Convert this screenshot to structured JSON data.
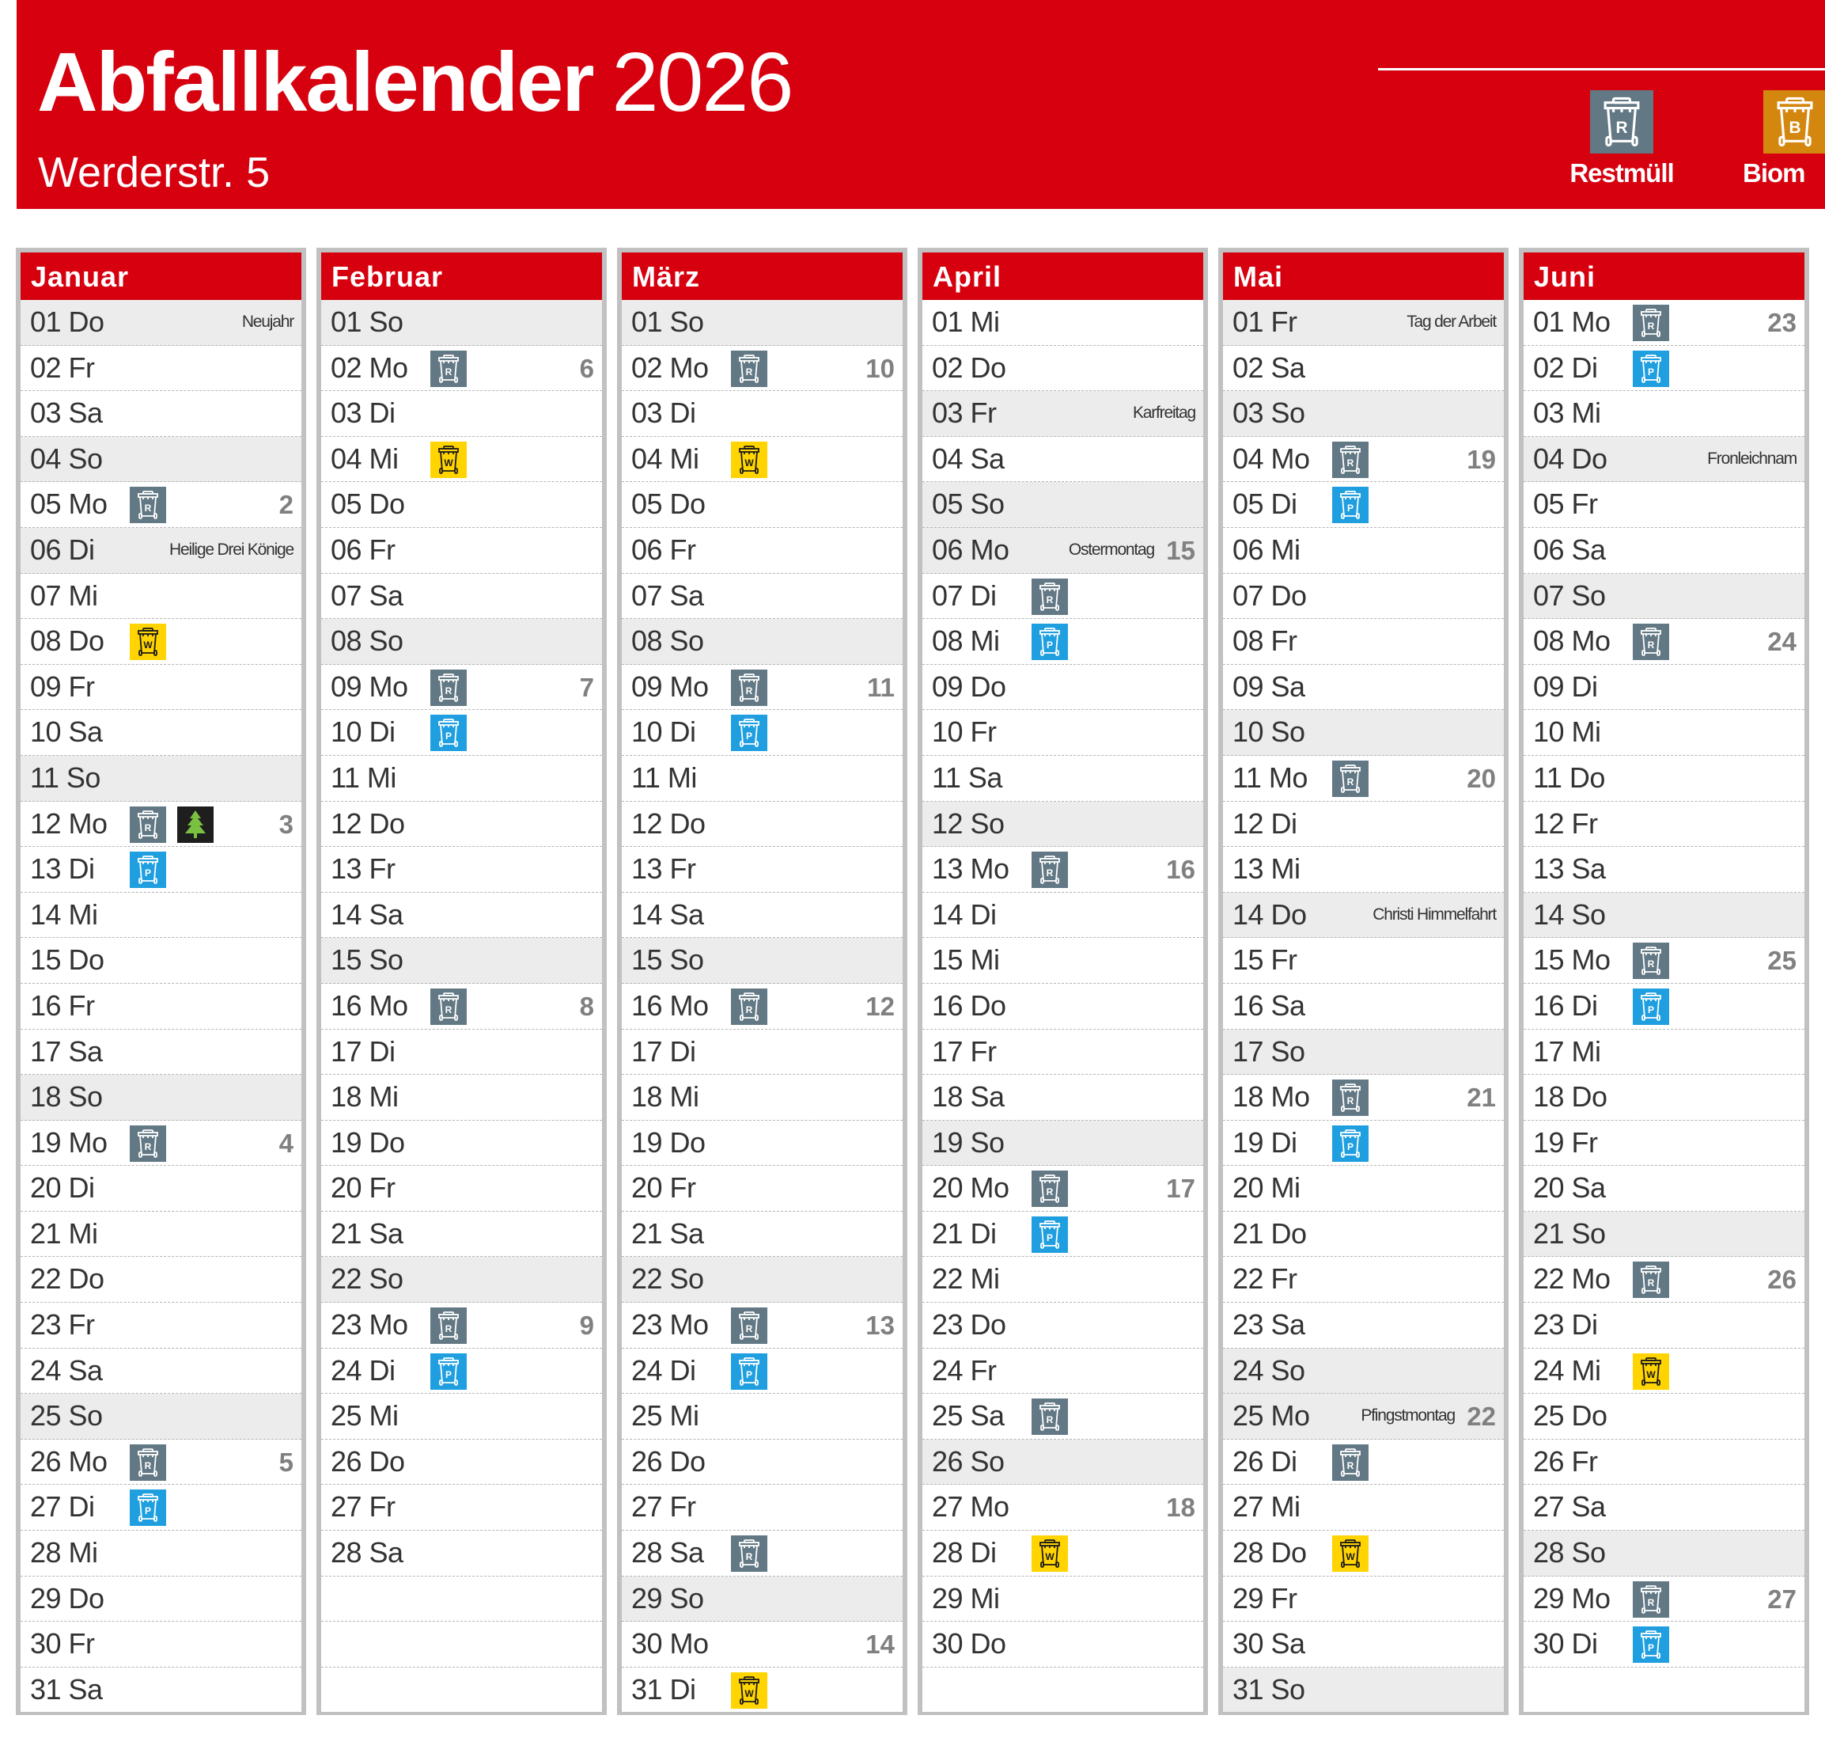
{
  "header": {
    "title_bold": "Abfallkalender",
    "title_year": "2026",
    "subtitle": "Werderstr. 5",
    "legend": [
      {
        "type": "R",
        "label": "Restmüll",
        "color": "#627884"
      },
      {
        "type": "B",
        "label": "Biom",
        "color": "#d4870f"
      }
    ]
  },
  "colors": {
    "brand_red": "#d6000f",
    "restmuell": "#627884",
    "papier": "#1f9fdf",
    "wertstoff": "#ffd400",
    "bio": "#d4870f",
    "weihnachtsbaum_bg": "#1e1e1e",
    "weihnachtsbaum_tree": "#7ac142",
    "sunday_holiday_bg": "#ececec",
    "week_number": "#808080"
  },
  "icon_types": {
    "R": "restmuell-bin-icon",
    "P": "papier-bin-icon",
    "W": "wertstoff-bin-icon",
    "B": "bio-bin-icon",
    "T": "christmas-tree-icon"
  },
  "months": [
    {
      "name": "Januar",
      "days": [
        {
          "d": "01 Do",
          "gray": true,
          "holiday": "Neujahr"
        },
        {
          "d": "02 Fr"
        },
        {
          "d": "03 Sa"
        },
        {
          "d": "04 So",
          "gray": true
        },
        {
          "d": "05 Mo",
          "icons": [
            "R"
          ],
          "kw": "2"
        },
        {
          "d": "06 Di",
          "gray": true,
          "holiday": "Heilige Drei Könige"
        },
        {
          "d": "07 Mi"
        },
        {
          "d": "08 Do",
          "icons": [
            "W"
          ]
        },
        {
          "d": "09 Fr"
        },
        {
          "d": "10 Sa"
        },
        {
          "d": "11 So",
          "gray": true
        },
        {
          "d": "12 Mo",
          "icons": [
            "R",
            "T"
          ],
          "kw": "3"
        },
        {
          "d": "13 Di",
          "icons": [
            "P"
          ]
        },
        {
          "d": "14 Mi"
        },
        {
          "d": "15 Do"
        },
        {
          "d": "16 Fr"
        },
        {
          "d": "17 Sa"
        },
        {
          "d": "18 So",
          "gray": true
        },
        {
          "d": "19 Mo",
          "icons": [
            "R"
          ],
          "kw": "4"
        },
        {
          "d": "20 Di"
        },
        {
          "d": "21 Mi"
        },
        {
          "d": "22 Do"
        },
        {
          "d": "23 Fr"
        },
        {
          "d": "24 Sa"
        },
        {
          "d": "25 So",
          "gray": true
        },
        {
          "d": "26 Mo",
          "icons": [
            "R"
          ],
          "kw": "5"
        },
        {
          "d": "27 Di",
          "icons": [
            "P"
          ]
        },
        {
          "d": "28 Mi"
        },
        {
          "d": "29 Do"
        },
        {
          "d": "30 Fr"
        },
        {
          "d": "31 Sa"
        }
      ]
    },
    {
      "name": "Februar",
      "days": [
        {
          "d": "01 So",
          "gray": true
        },
        {
          "d": "02 Mo",
          "icons": [
            "R"
          ],
          "kw": "6"
        },
        {
          "d": "03 Di"
        },
        {
          "d": "04 Mi",
          "icons": [
            "W"
          ]
        },
        {
          "d": "05 Do"
        },
        {
          "d": "06 Fr"
        },
        {
          "d": "07 Sa"
        },
        {
          "d": "08 So",
          "gray": true
        },
        {
          "d": "09 Mo",
          "icons": [
            "R"
          ],
          "kw": "7"
        },
        {
          "d": "10 Di",
          "icons": [
            "P"
          ]
        },
        {
          "d": "11 Mi"
        },
        {
          "d": "12 Do"
        },
        {
          "d": "13 Fr"
        },
        {
          "d": "14 Sa"
        },
        {
          "d": "15 So",
          "gray": true
        },
        {
          "d": "16 Mo",
          "icons": [
            "R"
          ],
          "kw": "8"
        },
        {
          "d": "17 Di"
        },
        {
          "d": "18 Mi"
        },
        {
          "d": "19 Do"
        },
        {
          "d": "20 Fr"
        },
        {
          "d": "21 Sa"
        },
        {
          "d": "22 So",
          "gray": true
        },
        {
          "d": "23 Mo",
          "icons": [
            "R"
          ],
          "kw": "9"
        },
        {
          "d": "24 Di",
          "icons": [
            "P"
          ]
        },
        {
          "d": "25 Mi"
        },
        {
          "d": "26 Do"
        },
        {
          "d": "27 Fr"
        },
        {
          "d": "28 Sa"
        }
      ]
    },
    {
      "name": "März",
      "days": [
        {
          "d": "01 So",
          "gray": true
        },
        {
          "d": "02 Mo",
          "icons": [
            "R"
          ],
          "kw": "10"
        },
        {
          "d": "03 Di"
        },
        {
          "d": "04 Mi",
          "icons": [
            "W"
          ]
        },
        {
          "d": "05 Do"
        },
        {
          "d": "06 Fr"
        },
        {
          "d": "07 Sa"
        },
        {
          "d": "08 So",
          "gray": true
        },
        {
          "d": "09 Mo",
          "icons": [
            "R"
          ],
          "kw": "11"
        },
        {
          "d": "10 Di",
          "icons": [
            "P"
          ]
        },
        {
          "d": "11 Mi"
        },
        {
          "d": "12 Do"
        },
        {
          "d": "13 Fr"
        },
        {
          "d": "14 Sa"
        },
        {
          "d": "15 So",
          "gray": true
        },
        {
          "d": "16 Mo",
          "icons": [
            "R"
          ],
          "kw": "12"
        },
        {
          "d": "17 Di"
        },
        {
          "d": "18 Mi"
        },
        {
          "d": "19 Do"
        },
        {
          "d": "20 Fr"
        },
        {
          "d": "21 Sa"
        },
        {
          "d": "22 So",
          "gray": true
        },
        {
          "d": "23 Mo",
          "icons": [
            "R"
          ],
          "kw": "13"
        },
        {
          "d": "24 Di",
          "icons": [
            "P"
          ]
        },
        {
          "d": "25 Mi"
        },
        {
          "d": "26 Do"
        },
        {
          "d": "27 Fr"
        },
        {
          "d": "28 Sa",
          "icons": [
            "R"
          ]
        },
        {
          "d": "29 So",
          "gray": true
        },
        {
          "d": "30 Mo",
          "kw": "14"
        },
        {
          "d": "31 Di",
          "icons": [
            "W"
          ]
        }
      ]
    },
    {
      "name": "April",
      "days": [
        {
          "d": "01 Mi"
        },
        {
          "d": "02 Do"
        },
        {
          "d": "03 Fr",
          "gray": true,
          "holiday": "Karfreitag"
        },
        {
          "d": "04 Sa"
        },
        {
          "d": "05 So",
          "gray": true
        },
        {
          "d": "06 Mo",
          "gray": true,
          "holiday": "Ostermontag",
          "kw": "15"
        },
        {
          "d": "07 Di",
          "icons": [
            "R"
          ]
        },
        {
          "d": "08 Mi",
          "icons": [
            "P"
          ]
        },
        {
          "d": "09 Do"
        },
        {
          "d": "10 Fr"
        },
        {
          "d": "11 Sa"
        },
        {
          "d": "12 So",
          "gray": true
        },
        {
          "d": "13 Mo",
          "icons": [
            "R"
          ],
          "kw": "16"
        },
        {
          "d": "14 Di"
        },
        {
          "d": "15 Mi"
        },
        {
          "d": "16 Do"
        },
        {
          "d": "17 Fr"
        },
        {
          "d": "18 Sa"
        },
        {
          "d": "19 So",
          "gray": true
        },
        {
          "d": "20 Mo",
          "icons": [
            "R"
          ],
          "kw": "17"
        },
        {
          "d": "21 Di",
          "icons": [
            "P"
          ]
        },
        {
          "d": "22 Mi"
        },
        {
          "d": "23 Do"
        },
        {
          "d": "24 Fr"
        },
        {
          "d": "25 Sa",
          "icons": [
            "R"
          ]
        },
        {
          "d": "26 So",
          "gray": true
        },
        {
          "d": "27 Mo",
          "kw": "18"
        },
        {
          "d": "28 Di",
          "icons": [
            "W"
          ]
        },
        {
          "d": "29 Mi"
        },
        {
          "d": "30 Do"
        }
      ]
    },
    {
      "name": "Mai",
      "days": [
        {
          "d": "01 Fr",
          "gray": true,
          "holiday": "Tag der Arbeit"
        },
        {
          "d": "02 Sa"
        },
        {
          "d": "03 So",
          "gray": true
        },
        {
          "d": "04 Mo",
          "icons": [
            "R"
          ],
          "kw": "19"
        },
        {
          "d": "05 Di",
          "icons": [
            "P"
          ]
        },
        {
          "d": "06 Mi"
        },
        {
          "d": "07 Do"
        },
        {
          "d": "08 Fr"
        },
        {
          "d": "09 Sa"
        },
        {
          "d": "10 So",
          "gray": true
        },
        {
          "d": "11 Mo",
          "icons": [
            "R"
          ],
          "kw": "20"
        },
        {
          "d": "12 Di"
        },
        {
          "d": "13 Mi"
        },
        {
          "d": "14 Do",
          "gray": true,
          "holiday": "Christi Himmelfahrt"
        },
        {
          "d": "15 Fr"
        },
        {
          "d": "16 Sa"
        },
        {
          "d": "17 So",
          "gray": true
        },
        {
          "d": "18 Mo",
          "icons": [
            "R"
          ],
          "kw": "21"
        },
        {
          "d": "19 Di",
          "icons": [
            "P"
          ]
        },
        {
          "d": "20 Mi"
        },
        {
          "d": "21 Do"
        },
        {
          "d": "22 Fr"
        },
        {
          "d": "23 Sa"
        },
        {
          "d": "24 So",
          "gray": true
        },
        {
          "d": "25 Mo",
          "gray": true,
          "holiday": "Pfingstmontag",
          "kw": "22"
        },
        {
          "d": "26 Di",
          "icons": [
            "R"
          ]
        },
        {
          "d": "27 Mi"
        },
        {
          "d": "28 Do",
          "icons": [
            "W"
          ]
        },
        {
          "d": "29 Fr"
        },
        {
          "d": "30 Sa"
        },
        {
          "d": "31 So",
          "gray": true
        }
      ]
    },
    {
      "name": "Juni",
      "days": [
        {
          "d": "01 Mo",
          "icons": [
            "R"
          ],
          "kw": "23"
        },
        {
          "d": "02 Di",
          "icons": [
            "P"
          ]
        },
        {
          "d": "03 Mi"
        },
        {
          "d": "04 Do",
          "gray": true,
          "holiday": "Fronleichnam"
        },
        {
          "d": "05 Fr"
        },
        {
          "d": "06 Sa"
        },
        {
          "d": "07 So",
          "gray": true
        },
        {
          "d": "08 Mo",
          "icons": [
            "R"
          ],
          "kw": "24"
        },
        {
          "d": "09 Di"
        },
        {
          "d": "10 Mi"
        },
        {
          "d": "11 Do"
        },
        {
          "d": "12 Fr"
        },
        {
          "d": "13 Sa"
        },
        {
          "d": "14 So",
          "gray": true
        },
        {
          "d": "15 Mo",
          "icons": [
            "R"
          ],
          "kw": "25"
        },
        {
          "d": "16 Di",
          "icons": [
            "P"
          ]
        },
        {
          "d": "17 Mi"
        },
        {
          "d": "18 Do"
        },
        {
          "d": "19 Fr"
        },
        {
          "d": "20 Sa"
        },
        {
          "d": "21 So",
          "gray": true
        },
        {
          "d": "22 Mo",
          "icons": [
            "R"
          ],
          "kw": "26"
        },
        {
          "d": "23 Di"
        },
        {
          "d": "24 Mi",
          "icons": [
            "W"
          ]
        },
        {
          "d": "25 Do"
        },
        {
          "d": "26 Fr"
        },
        {
          "d": "27 Sa"
        },
        {
          "d": "28 So",
          "gray": true
        },
        {
          "d": "29 Mo",
          "icons": [
            "R"
          ],
          "kw": "27"
        },
        {
          "d": "30 Di",
          "icons": [
            "P"
          ]
        }
      ]
    }
  ]
}
